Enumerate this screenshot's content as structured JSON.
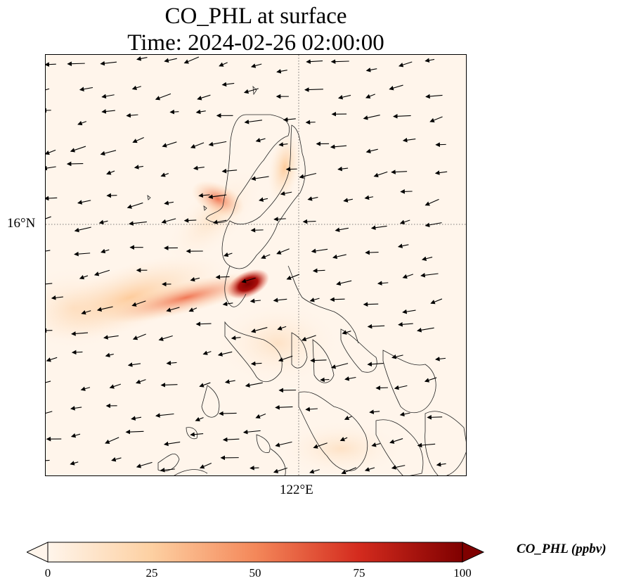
{
  "title": {
    "line1": "CO_PHL at surface",
    "line2": "Time: 2024-02-26 02:00:00"
  },
  "map": {
    "gridlines": {
      "latitude_label": "16°N",
      "longitude_label": "122°E",
      "style": "dotted"
    },
    "field": "CO_PHL",
    "colormap": "OrRd",
    "wind_vectors": "shown",
    "coastlines": "shown"
  },
  "colorbar": {
    "label": "CO_PHL (ppbv)",
    "ticks": [
      "0",
      "25",
      "50",
      "75",
      "100"
    ],
    "min": 0,
    "max": 100,
    "extend": "both",
    "colors": [
      "#fff5eb",
      "#fdd0a2",
      "#f4885a",
      "#d42b1e",
      "#7f0000"
    ]
  }
}
